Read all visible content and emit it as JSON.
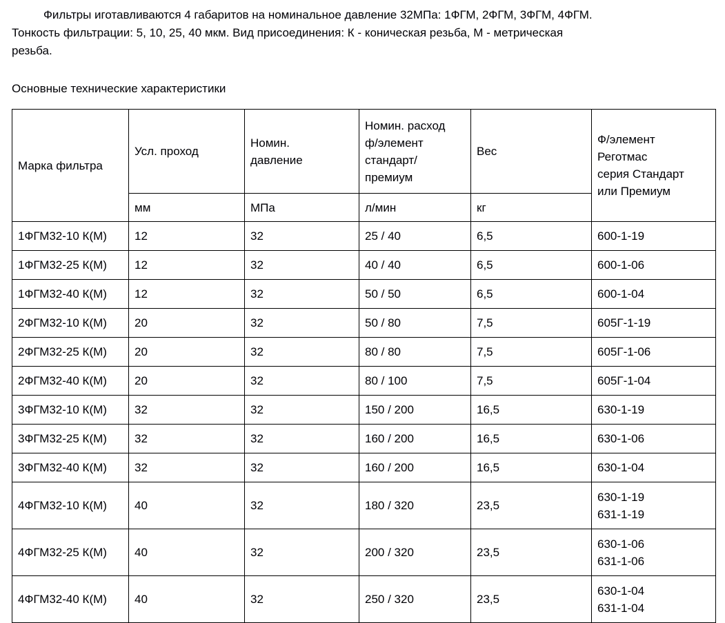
{
  "page": {
    "intro_paragraph": "Фильтры иготавливаются 4 габаритов на номинальное давление 32МПа: 1ФГМ, 2ФГМ, 3ФГМ, 4ФГМ.\nТонкость фильтрации: 5, 10, 25, 40 мкм. Вид присоединения: К - коническая резьба, М - метрическая\nрезьба.",
    "section_title": "Основные технические характеристики"
  },
  "table": {
    "header": {
      "col1": "Марка фильтра",
      "col2": "Усл. проход",
      "col3": "Номин.\nдавление",
      "col4": "Номин. расход\nф/элемент\nстандарт/\nпремиум",
      "col5": "Вес",
      "col6": "Ф/элемент\nРеготмас\nсерия Стандарт\nили Премиум",
      "units": {
        "col2": "мм",
        "col3": "МПа",
        "col4": "л/мин",
        "col5": "кг"
      }
    },
    "rows": [
      [
        "1ФГМ32-10 К(М)",
        "12",
        "32",
        "25 / 40",
        "6,5",
        "600-1-19"
      ],
      [
        "1ФГМ32-25 К(М)",
        "12",
        "32",
        "40 / 40",
        "6,5",
        "600-1-06"
      ],
      [
        "1ФГМ32-40 К(М)",
        "12",
        "32",
        "50 / 50",
        "6,5",
        "600-1-04"
      ],
      [
        "2ФГМ32-10 К(М)",
        "20",
        "32",
        "50 / 80",
        "7,5",
        "605Г-1-19"
      ],
      [
        "2ФГМ32-25 К(М)",
        "20",
        "32",
        "80 / 80",
        "7,5",
        "605Г-1-06"
      ],
      [
        "2ФГМ32-40 К(М)",
        "20",
        "32",
        "80 / 100",
        "7,5",
        "605Г-1-04"
      ],
      [
        "3ФГМ32-10 К(М)",
        "32",
        "32",
        "150 / 200",
        "16,5",
        "630-1-19"
      ],
      [
        "3ФГМ32-25 К(М)",
        "32",
        "32",
        "160 / 200",
        "16,5",
        "630-1-06"
      ],
      [
        "3ФГМ32-40 К(М)",
        "32",
        "32",
        "160 / 200",
        "16,5",
        "630-1-04"
      ],
      [
        "4ФГМ32-10 К(М)",
        "40",
        "32",
        "180 / 320",
        "23,5",
        "630-1-19\n631-1-19"
      ],
      [
        "4ФГМ32-25 К(М)",
        "40",
        "32",
        "200 / 320",
        "23,5",
        "630-1-06\n631-1-06"
      ],
      [
        "4ФГМ32-40 К(М)",
        "40",
        "32",
        "250 / 320",
        "23,5",
        "630-1-04\n631-1-04"
      ]
    ]
  },
  "colors": {
    "text": "#000005",
    "border": "#000000",
    "background": "#ffffff"
  }
}
